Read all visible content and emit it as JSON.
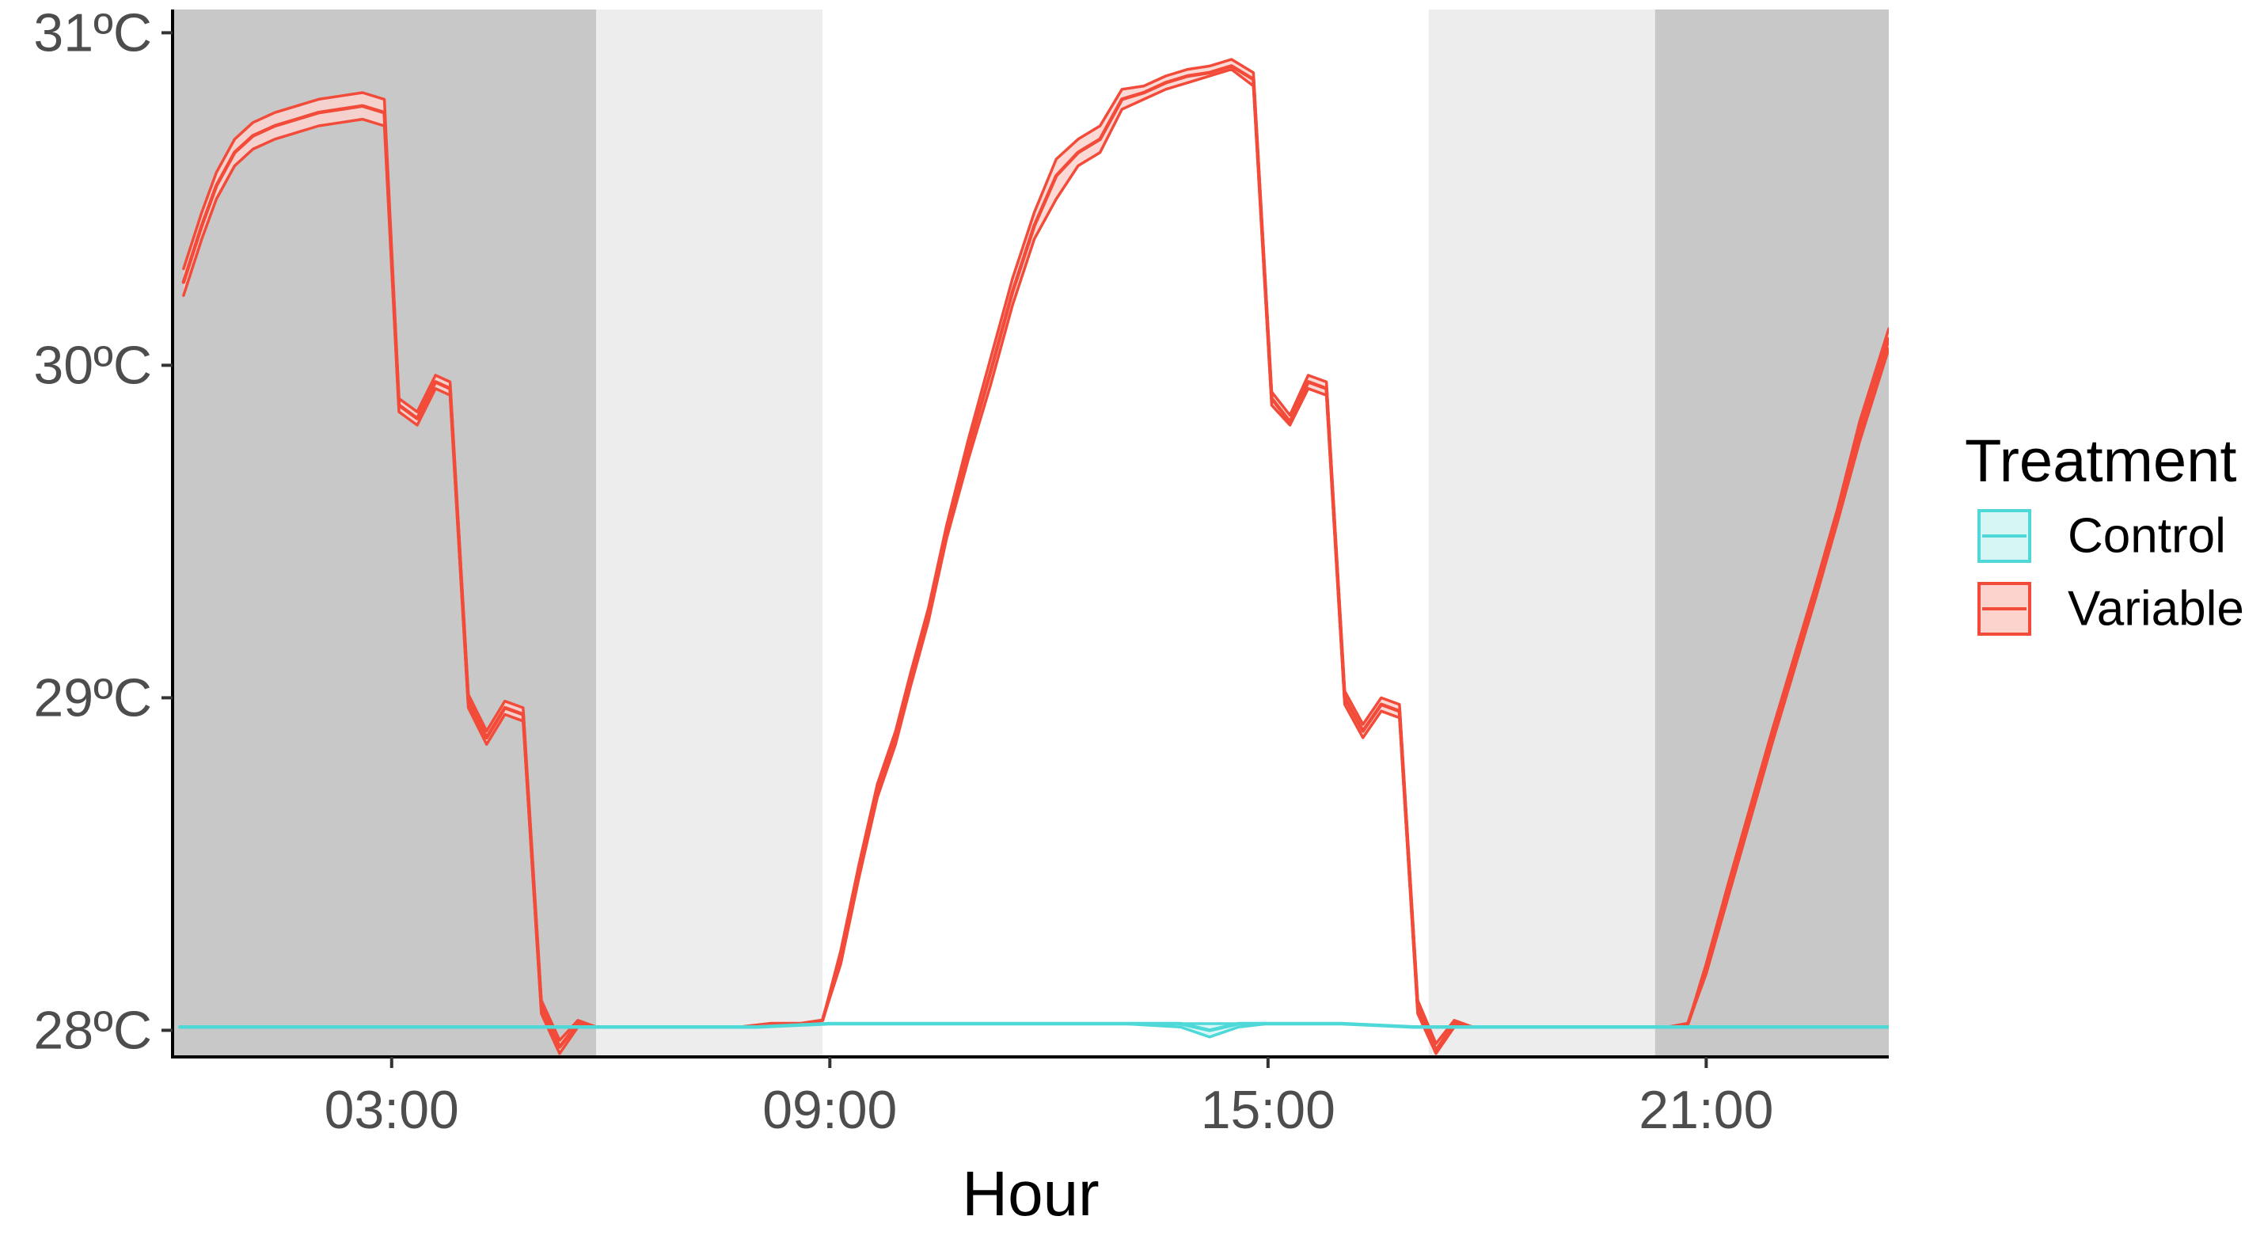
{
  "chart_data": {
    "type": "line",
    "xlabel": "Hour",
    "ylabel": "",
    "title": "",
    "xlim": [
      0,
      23.5
    ],
    "ylim": [
      27.92,
      31.07
    ],
    "x_ticks": [
      {
        "value": 3,
        "label": "03:00"
      },
      {
        "value": 9,
        "label": "09:00"
      },
      {
        "value": 15,
        "label": "15:00"
      },
      {
        "value": 21,
        "label": "21:00"
      }
    ],
    "y_ticks": [
      {
        "value": 28,
        "label": "28ºC"
      },
      {
        "value": 29,
        "label": "29ºC"
      },
      {
        "value": 30,
        "label": "30ºC"
      },
      {
        "value": 31,
        "label": "31ºC"
      }
    ],
    "background_bands": [
      {
        "x_start": 0,
        "x_end": 5.8,
        "shade": "dark",
        "color": "#c8c8c8"
      },
      {
        "x_start": 5.8,
        "x_end": 8.9,
        "shade": "light",
        "color": "#ededed"
      },
      {
        "x_start": 17.2,
        "x_end": 20.3,
        "shade": "light",
        "color": "#ededed"
      },
      {
        "x_start": 20.3,
        "x_end": 23.5,
        "shade": "dark",
        "color": "#c8c8c8"
      }
    ],
    "legend": {
      "title": "Treatment",
      "position": "right"
    },
    "grid": false,
    "series": [
      {
        "name": "Control",
        "color": "#4fd8d8",
        "fill": "#d6f6f6",
        "x": [
          0.1,
          1,
          2,
          3,
          4,
          5,
          6,
          7,
          8,
          9,
          10,
          11,
          12,
          13,
          13.8,
          14.2,
          14.6,
          15,
          16,
          17,
          18,
          19,
          20,
          21,
          22,
          23,
          23.5
        ],
        "y": [
          28.01,
          28.01,
          28.01,
          28.01,
          28.01,
          28.01,
          28.01,
          28.01,
          28.01,
          28.02,
          28.02,
          28.02,
          28.02,
          28.02,
          28.02,
          28.0,
          28.02,
          28.02,
          28.02,
          28.01,
          28.01,
          28.01,
          28.01,
          28.01,
          28.01,
          28.01,
          28.01
        ],
        "lower": [
          28.01,
          28.01,
          28.01,
          28.01,
          28.01,
          28.01,
          28.01,
          28.01,
          28.01,
          28.02,
          28.02,
          28.02,
          28.02,
          28.02,
          28.01,
          27.98,
          28.01,
          28.02,
          28.02,
          28.01,
          28.01,
          28.01,
          28.01,
          28.01,
          28.01,
          28.01,
          28.01
        ],
        "upper": [
          28.01,
          28.01,
          28.01,
          28.01,
          28.01,
          28.01,
          28.01,
          28.01,
          28.01,
          28.02,
          28.02,
          28.02,
          28.02,
          28.02,
          28.02,
          28.02,
          28.02,
          28.02,
          28.02,
          28.01,
          28.01,
          28.01,
          28.01,
          28.01,
          28.01,
          28.01,
          28.01
        ]
      },
      {
        "name": "Variable",
        "color": "#f24b3a",
        "fill": "#fcd2cd",
        "x": [
          0.15,
          0.4,
          0.6,
          0.85,
          1.1,
          1.4,
          1.7,
          2,
          2.3,
          2.6,
          2.9,
          3.1,
          3.35,
          3.6,
          3.8,
          4.05,
          4.3,
          4.55,
          4.8,
          5.05,
          5.3,
          5.55,
          5.8,
          6.2,
          6.6,
          7,
          7.4,
          7.8,
          8.2,
          8.6,
          8.9,
          9.15,
          9.4,
          9.65,
          9.9,
          10.1,
          10.35,
          10.6,
          10.9,
          11.2,
          11.5,
          11.8,
          12.1,
          12.4,
          12.7,
          13,
          13.3,
          13.6,
          13.9,
          14.2,
          14.5,
          14.8,
          15.05,
          15.3,
          15.55,
          15.8,
          16.05,
          16.3,
          16.55,
          16.8,
          17.05,
          17.3,
          17.55,
          17.8,
          18.1,
          18.5,
          18.9,
          19.3,
          19.7,
          20.1,
          20.5,
          20.75,
          21,
          21.3,
          21.6,
          21.9,
          22.2,
          22.5,
          22.8,
          23.1,
          23.5
        ],
        "y": [
          30.25,
          30.42,
          30.54,
          30.64,
          30.69,
          30.72,
          30.74,
          30.76,
          30.77,
          30.78,
          30.76,
          29.88,
          29.84,
          29.95,
          29.93,
          28.99,
          28.88,
          28.97,
          28.95,
          28.07,
          27.95,
          28.02,
          28.01,
          28.01,
          28.01,
          28.01,
          28.01,
          28.01,
          28.02,
          28.02,
          28.03,
          28.22,
          28.48,
          28.72,
          28.88,
          29.05,
          29.25,
          29.5,
          29.75,
          29.98,
          30.22,
          30.42,
          30.57,
          30.64,
          30.68,
          30.8,
          30.82,
          30.85,
          30.87,
          30.88,
          30.9,
          30.86,
          29.9,
          29.83,
          29.95,
          29.93,
          29.0,
          28.9,
          28.98,
          28.96,
          28.07,
          27.94,
          28.02,
          28.01,
          28.01,
          28.01,
          28.01,
          28.01,
          28.01,
          28.01,
          28.01,
          28.02,
          28.18,
          28.42,
          28.65,
          28.88,
          29.1,
          29.32,
          29.55,
          29.8,
          30.08
        ],
        "lower": [
          30.21,
          30.38,
          30.5,
          30.6,
          30.65,
          30.68,
          30.7,
          30.72,
          30.73,
          30.74,
          30.72,
          29.86,
          29.82,
          29.93,
          29.91,
          28.97,
          28.86,
          28.95,
          28.93,
          28.05,
          27.93,
          28.01,
          28.01,
          28.01,
          28.01,
          28.01,
          28.01,
          28.01,
          28.02,
          28.02,
          28.03,
          28.2,
          28.46,
          28.7,
          28.86,
          29.03,
          29.23,
          29.48,
          29.72,
          29.94,
          30.18,
          30.38,
          30.5,
          30.6,
          30.64,
          30.77,
          30.8,
          30.83,
          30.85,
          30.87,
          30.89,
          30.84,
          29.88,
          29.82,
          29.93,
          29.91,
          28.98,
          28.88,
          28.96,
          28.94,
          28.05,
          27.93,
          28.01,
          28.01,
          28.01,
          28.01,
          28.01,
          28.01,
          28.01,
          28.01,
          28.01,
          28.02,
          28.17,
          28.4,
          28.63,
          28.86,
          29.08,
          29.3,
          29.53,
          29.77,
          30.05
        ],
        "upper": [
          30.29,
          30.46,
          30.58,
          30.68,
          30.73,
          30.76,
          30.78,
          30.8,
          30.81,
          30.82,
          30.8,
          29.9,
          29.86,
          29.97,
          29.95,
          29.01,
          28.9,
          28.99,
          28.97,
          28.09,
          27.97,
          28.03,
          28.01,
          28.01,
          28.01,
          28.01,
          28.01,
          28.01,
          28.02,
          28.02,
          28.03,
          28.24,
          28.5,
          28.74,
          28.9,
          29.07,
          29.27,
          29.52,
          29.78,
          30.02,
          30.26,
          30.46,
          30.62,
          30.68,
          30.72,
          30.83,
          30.84,
          30.87,
          30.89,
          30.9,
          30.92,
          30.88,
          29.92,
          29.85,
          29.97,
          29.95,
          29.02,
          28.92,
          29.0,
          28.98,
          28.09,
          27.96,
          28.03,
          28.01,
          28.01,
          28.01,
          28.01,
          28.01,
          28.01,
          28.01,
          28.01,
          28.02,
          28.2,
          28.44,
          28.67,
          28.9,
          29.12,
          29.34,
          29.57,
          29.83,
          30.11
        ]
      }
    ]
  }
}
